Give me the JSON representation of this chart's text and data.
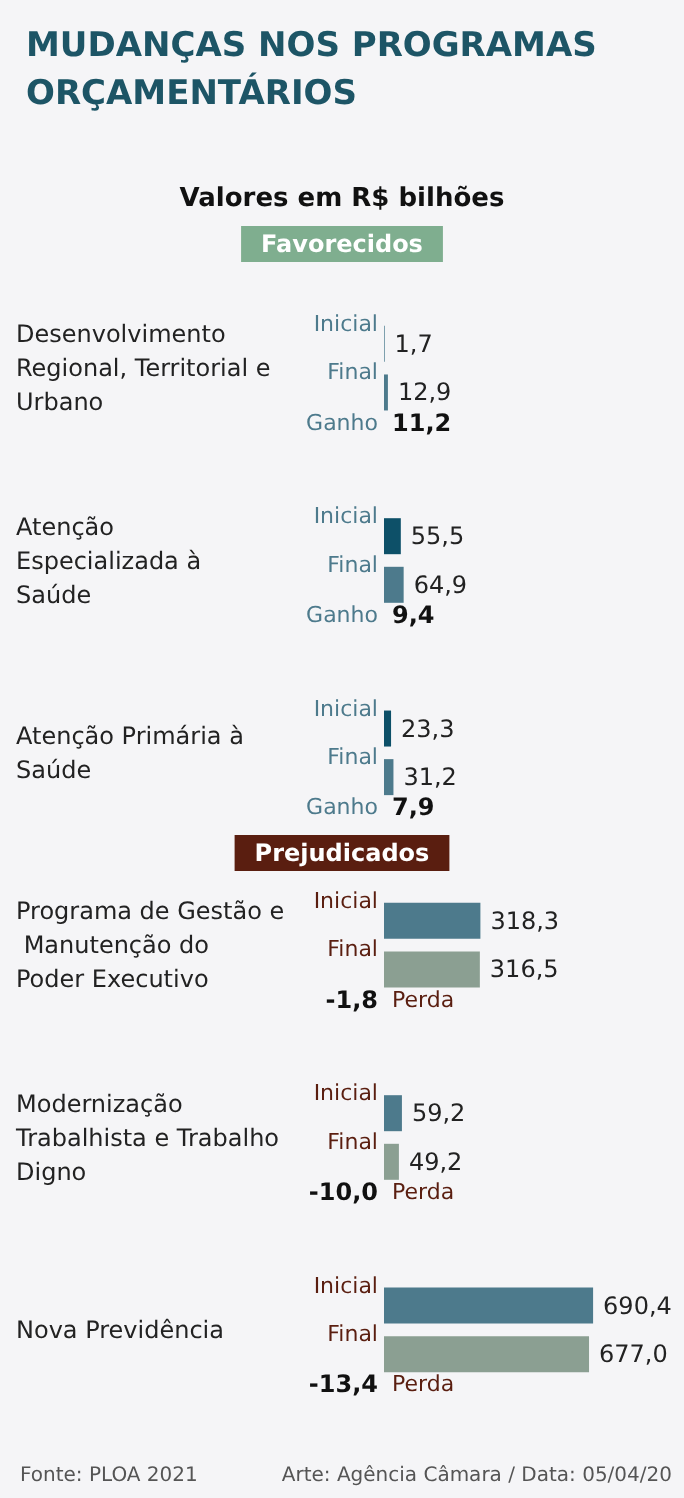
{
  "chart_data": {
    "type": "bar",
    "orientation": "horizontal",
    "title": "MUDANÇAS NOS PROGRAMAS ORÇAMENTÁRIOS",
    "subtitle": "Valores em R$ bilhões",
    "categories": [
      "Desenvolvimento Regional, Territorial e Urbano",
      "Atenção Especializada à Saúde",
      "Atenção Primária à Saúde",
      "Programa de Gestão e Manutenção do Poder Executivo",
      "Modernização Trabalhista e Trabalho Digno",
      "Nova Previdência"
    ],
    "series": [
      {
        "name": "Inicial",
        "colors": [
          "#0d5068",
          "#0d5068",
          "#0d5068",
          "#4d7a8c",
          "#4d7a8c",
          "#4d7a8c"
        ],
        "values": [
          1.7,
          55.5,
          23.3,
          318.3,
          59.2,
          690.4
        ],
        "value_labels": [
          "1,7",
          "55,5",
          "23,3",
          "318,3",
          "59,2",
          "690,4"
        ]
      },
      {
        "name": "Final",
        "colors": [
          "#4d7a8c",
          "#4d7a8c",
          "#4d7a8c",
          "#8b9f92",
          "#8b9f92",
          "#8b9f92"
        ],
        "values": [
          12.9,
          64.9,
          31.2,
          316.5,
          49.2,
          677.0
        ],
        "value_labels": [
          "12,9",
          "64,9",
          "31,2",
          "316,5",
          "49,2",
          "677,0"
        ]
      }
    ],
    "legend": false,
    "annotations": [
      "Favorecidos",
      "Prejudicados",
      "Fonte: PLOA 2021",
      "Arte: Agência Câmara / Data: 05/04/20",
      "Ganho",
      "11,2",
      "Ganho",
      "9,4",
      "Ganho",
      "7,9",
      "Perda",
      "-1,8",
      "Perda",
      "-10,0",
      "Perda",
      "-13,4"
    ]
  }
}
